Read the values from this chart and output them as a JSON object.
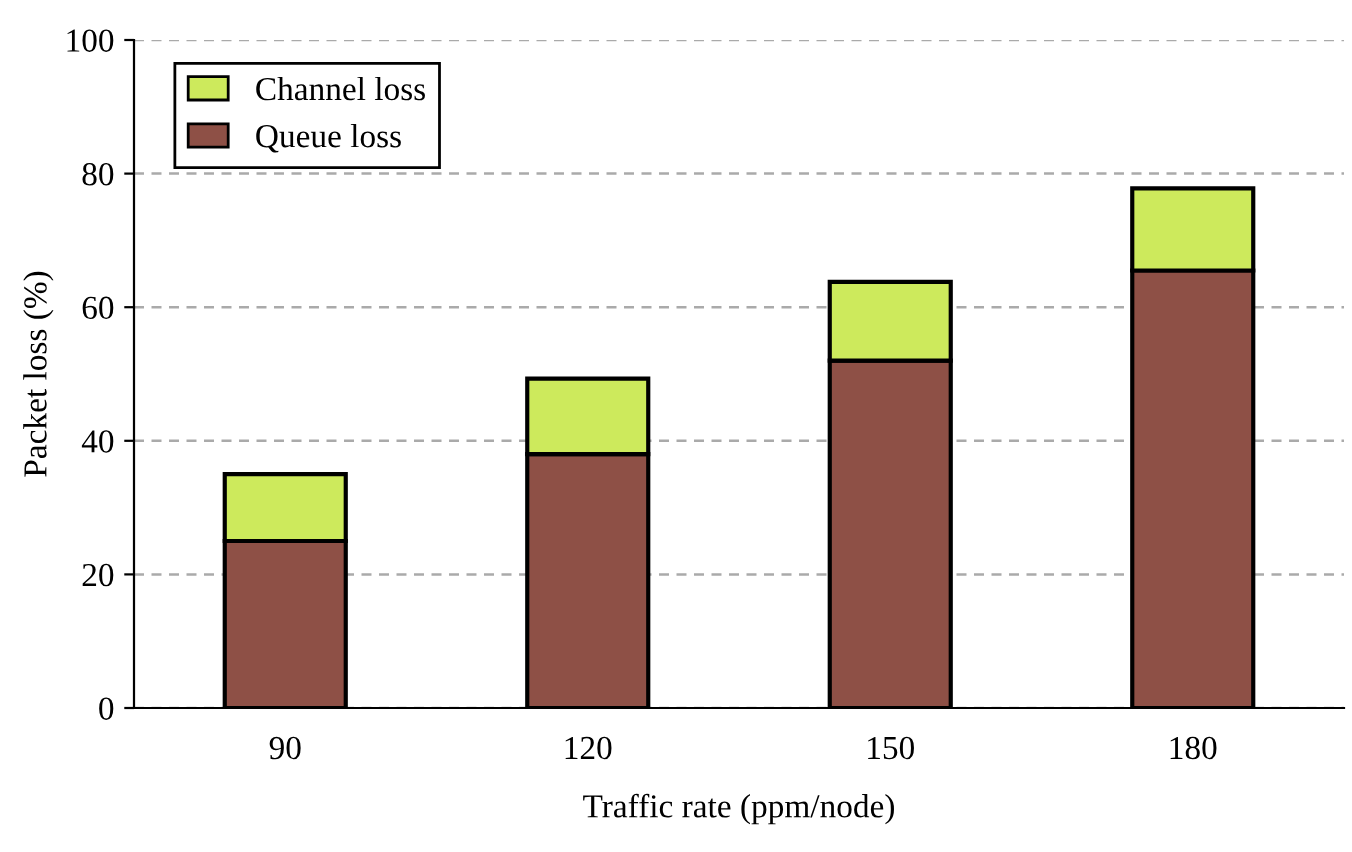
{
  "chart_data": {
    "type": "bar",
    "stacked": true,
    "xlabel": "Traffic rate (ppm/node)",
    "ylabel": "Packet loss (%)",
    "categories": [
      "90",
      "120",
      "150",
      "180"
    ],
    "series": [
      {
        "name": "Queue loss",
        "color": "#8e5046",
        "values": [
          25,
          38,
          52,
          65.5
        ]
      },
      {
        "name": "Channel loss",
        "color": "#cdea5c",
        "values": [
          10,
          11.3,
          11.8,
          12.3
        ]
      }
    ],
    "ylim": [
      0,
      100
    ],
    "yticks": [
      0,
      20,
      40,
      60,
      80,
      100
    ],
    "grid": "y",
    "legend": "top left"
  }
}
